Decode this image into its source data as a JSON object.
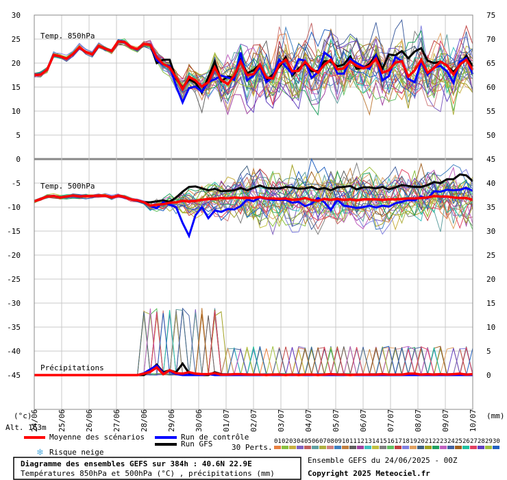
{
  "chart_data": {
    "type": "line",
    "dates": [
      "24/06",
      "25/06",
      "26/06",
      "27/06",
      "28/06",
      "29/06",
      "30/06",
      "01/07",
      "02/07",
      "03/07",
      "04/07",
      "05/07",
      "06/07",
      "07/07",
      "08/07",
      "09/07",
      "10/07"
    ],
    "left_ticks": [
      "30",
      "25",
      "20",
      "15",
      "10",
      "5",
      "0",
      "-5",
      "-10",
      "-15",
      "-20",
      "-25",
      "-30",
      "-35",
      "-40",
      "-45"
    ],
    "right_ticks": [
      "75",
      "70",
      "65",
      "60",
      "55",
      "50",
      "45",
      "40",
      "35",
      "30",
      "25",
      "20",
      "15",
      "10",
      "5",
      "0"
    ],
    "left_unit": "(°c)",
    "right_unit": "(mm)",
    "altitude_label": "Alt. 163m",
    "panels": {
      "t850": {
        "label": "Temp. 850hPa"
      },
      "t500": {
        "label": "Temp. 500hPa"
      },
      "precip": {
        "label": "Précipitations"
      }
    },
    "t850_mean": [
      17.5,
      17.6,
      18.6,
      21.7,
      21.4,
      20.9,
      21.9,
      23.3,
      22.3,
      21.8,
      23.6,
      23.0,
      22.5,
      24.5,
      24.4,
      23.3,
      22.9,
      24.0,
      23.8,
      21.2,
      19.8,
      19.1,
      17.0,
      14.6,
      17.1,
      16.4,
      15.1,
      16.0,
      19.1,
      16.5,
      15.6,
      17.4,
      20.3,
      17.5,
      17.7,
      19.7,
      17.0,
      16.8,
      19.7,
      20.7,
      18.3,
      18.4,
      20.3,
      18.8,
      18.0,
      19.7,
      20.7,
      18.7,
      18.9,
      20.4,
      19.4,
      18.9,
      19.4,
      20.9,
      18.0,
      18.5,
      20.1,
      20.4,
      17.2,
      18.5,
      20.7,
      18.0,
      19.0,
      20.3,
      19.5,
      17.6,
      19.7,
      20.7,
      18.6
    ],
    "t850_control": [
      17.5,
      17.6,
      18.6,
      21.7,
      21.4,
      20.9,
      21.9,
      23.3,
      22.3,
      21.8,
      23.6,
      23.0,
      22.5,
      24.5,
      24.4,
      23.3,
      22.9,
      24.0,
      23.8,
      20.6,
      19.7,
      19.4,
      15.2,
      11.8,
      14.8,
      15.1,
      14.0,
      16.1,
      16.6,
      17.4,
      17.0,
      16.5,
      22.2,
      16.4,
      17.4,
      19.2,
      16.0,
      17.1,
      20.7,
      19.3,
      17.7,
      20.8,
      20.5,
      16.9,
      18.1,
      22.2,
      21.2,
      17.8,
      17.8,
      20.9,
      20.0,
      19.3,
      18.8,
      21.6,
      16.4,
      17.3,
      21.3,
      20.4,
      16.7,
      16.0,
      20.3,
      17.6,
      19.1,
      19.4,
      18.3,
      15.9,
      20.3,
      21.0,
      17.7
    ],
    "t850_gfs": [
      17.5,
      17.6,
      18.6,
      21.7,
      21.4,
      20.9,
      21.9,
      23.3,
      22.3,
      21.8,
      23.6,
      23.0,
      22.5,
      24.5,
      24.4,
      23.3,
      22.9,
      24.0,
      23.8,
      20.0,
      20.7,
      20.7,
      16.7,
      14.9,
      16.6,
      15.9,
      13.8,
      17.1,
      20.3,
      16.2,
      17.2,
      16.9,
      20.6,
      17.9,
      18.5,
      19.7,
      16.5,
      17.6,
      19.2,
      21.2,
      17.4,
      18.9,
      19.9,
      18.3,
      18.4,
      20.4,
      20.3,
      19.3,
      19.7,
      21.4,
      18.8,
      19.0,
      19.8,
      21.7,
      18.8,
      21.8,
      21.6,
      22.5,
      21.0,
      22.4,
      23.1,
      20.5,
      20.0,
      20.3,
      19.4,
      18.2,
      19.5,
      21.5,
      19.3
    ],
    "t500_mean": [
      -8.8,
      -8.3,
      -7.8,
      -7.7,
      -8.0,
      -7.8,
      -7.6,
      -7.8,
      -7.7,
      -7.7,
      -7.6,
      -7.6,
      -8.0,
      -7.6,
      -7.9,
      -8.4,
      -8.6,
      -9.0,
      -9.7,
      -9.5,
      -9.4,
      -9.1,
      -9.0,
      -8.7,
      -8.8,
      -8.7,
      -8.5,
      -8.3,
      -8.3,
      -8.1,
      -8.2,
      -8.0,
      -8.1,
      -8.1,
      -8.1,
      -7.9,
      -8.2,
      -8.2,
      -8.3,
      -8.2,
      -8.5,
      -8.4,
      -8.1,
      -8.5,
      -8.7,
      -8.3,
      -8.5,
      -8.3,
      -8.5,
      -8.4,
      -8.6,
      -8.4,
      -8.4,
      -8.4,
      -8.5,
      -8.4,
      -8.4,
      -8.3,
      -8.2,
      -8.2,
      -8.1,
      -8.0,
      -7.7,
      -7.8,
      -7.8,
      -8.0,
      -8.1,
      -8.1,
      -8.5
    ],
    "t500_control": [
      -8.8,
      -8.3,
      -7.8,
      -7.7,
      -8.0,
      -7.8,
      -7.6,
      -7.8,
      -7.7,
      -7.7,
      -7.6,
      -7.6,
      -8.0,
      -7.6,
      -7.9,
      -8.4,
      -8.6,
      -9.0,
      -9.8,
      -10.2,
      -9.0,
      -9.5,
      -10.0,
      -13.3,
      -16.0,
      -11.7,
      -10.0,
      -12.3,
      -10.7,
      -11.0,
      -10.4,
      -10.5,
      -9.8,
      -8.4,
      -8.8,
      -8.0,
      -8.3,
      -8.5,
      -8.5,
      -8.5,
      -9.1,
      -8.9,
      -9.8,
      -9.3,
      -8.1,
      -9.0,
      -10.6,
      -8.5,
      -9.7,
      -9.9,
      -10.2,
      -10.0,
      -9.7,
      -10.1,
      -9.7,
      -9.9,
      -9.2,
      -8.9,
      -8.5,
      -8.6,
      -7.8,
      -8.2,
      -6.7,
      -6.8,
      -6.4,
      -6.5,
      -6.4,
      -6.0,
      -6.6
    ],
    "t500_gfs": [
      -8.8,
      -8.3,
      -7.8,
      -7.7,
      -8.0,
      -7.8,
      -7.6,
      -7.8,
      -7.7,
      -7.7,
      -7.6,
      -7.6,
      -8.0,
      -7.6,
      -7.9,
      -8.4,
      -8.6,
      -9.0,
      -9.0,
      -8.8,
      -8.6,
      -8.9,
      -8.0,
      -6.8,
      -5.8,
      -5.7,
      -6.1,
      -6.5,
      -6.2,
      -6.7,
      -6.6,
      -6.5,
      -6.0,
      -6.5,
      -6.0,
      -5.5,
      -6.0,
      -6.1,
      -6.1,
      -5.8,
      -5.9,
      -6.2,
      -6.1,
      -5.8,
      -6.3,
      -6.0,
      -6.5,
      -5.9,
      -5.8,
      -5.6,
      -6.3,
      -5.9,
      -5.9,
      -6.1,
      -5.8,
      -6.3,
      -5.9,
      -5.4,
      -5.6,
      -5.8,
      -5.8,
      -5.4,
      -4.8,
      -5.0,
      -4.2,
      -4.2,
      -3.2,
      -3.4,
      -4.6
    ],
    "precip_mean": [
      0,
      0,
      0,
      0,
      0,
      0,
      0,
      0,
      0,
      0,
      0,
      0,
      0,
      0,
      0,
      0,
      0,
      0.3,
      0.7,
      1.6,
      0.2,
      1.0,
      0.4,
      0.3,
      0.6,
      0.3,
      0.2,
      0.2,
      0.4,
      0.1,
      0.1,
      0.2,
      0.2,
      0.1,
      0.1,
      0.1,
      0,
      0.1,
      0.1,
      0,
      0.1,
      0,
      0.1,
      0.1,
      0,
      0.1,
      0.2,
      0.1,
      0.1,
      0,
      0.1,
      0.1,
      0.1,
      0.1,
      0.2,
      0.1,
      0.1,
      0.1,
      0.3,
      0.3,
      0.1,
      0.2,
      0.1,
      0.2,
      0.1,
      0.2,
      0.3,
      0.1,
      0.2
    ],
    "precip_control": [
      0,
      0,
      0,
      0,
      0,
      0,
      0,
      0,
      0,
      0,
      0,
      0,
      0,
      0,
      0,
      0,
      0,
      0.4,
      1.2,
      2.0,
      0.4,
      0.8,
      0.2,
      0,
      0,
      0,
      0,
      0.2,
      0,
      0,
      0,
      0,
      0,
      0,
      0,
      0,
      0,
      0,
      0,
      0,
      0,
      0,
      0,
      0,
      0,
      0,
      0,
      0,
      0,
      0,
      0,
      0,
      0,
      0,
      0,
      0,
      0,
      0,
      0,
      0,
      0,
      0,
      0,
      0,
      0,
      0,
      0,
      0,
      0
    ],
    "precip_gfs": [
      0,
      0,
      0,
      0,
      0,
      0,
      0,
      0,
      0,
      0,
      0,
      0,
      0,
      0,
      0,
      0,
      0,
      0,
      1.0,
      2.2,
      0.6,
      1.0,
      0.6,
      2.4,
      0.4,
      0.2,
      0,
      0,
      0.6,
      0.2,
      0,
      0,
      0,
      0,
      0,
      0,
      0,
      0,
      0,
      0,
      0,
      0,
      0,
      0,
      0,
      0,
      0,
      0,
      0,
      0,
      0,
      0,
      0,
      0,
      0,
      0,
      0,
      0,
      0,
      0,
      0,
      0,
      0,
      0,
      0,
      0,
      0,
      0,
      0
    ],
    "perturbation_labels": [
      "01",
      "02",
      "03",
      "04",
      "05",
      "06",
      "07",
      "08",
      "09",
      "10",
      "11",
      "12",
      "13",
      "14",
      "15",
      "16",
      "17",
      "18",
      "19",
      "20",
      "21",
      "22",
      "23",
      "24",
      "25",
      "26",
      "27",
      "28",
      "29",
      "30"
    ],
    "perturbation_colors": [
      "#e88040",
      "#88c040",
      "#c8b040",
      "#8060c0",
      "#c06060",
      "#60a0a0",
      "#b0b040",
      "#d08080",
      "#4080c0",
      "#c08040",
      "#606060",
      "#a040a0",
      "#40c0c0",
      "#c0c040",
      "#808080",
      "#60c060",
      "#c04040",
      "#8080e0",
      "#e0a060",
      "#406080",
      "#a0a020",
      "#20a060",
      "#c060c0",
      "#4060a0",
      "#a06020",
      "#20c0a0",
      "#e04060",
      "#6040c0",
      "#a0c040",
      "#2060c0"
    ],
    "series": [
      {
        "name": "Moyenne des scénarios",
        "color": "#ff0000"
      },
      {
        "name": "Run de contrôle",
        "color": "#0000ff"
      },
      {
        "name": "Run GFS",
        "color": "#000000"
      },
      {
        "name": "Risque neige",
        "color": "#5ab0e0"
      },
      {
        "name": "30 Perts.",
        "color": "#808080"
      }
    ],
    "title": "Diagramme des ensembles GEFS sur 384h : 40.6N 22.9E",
    "subtitle": "Températures 850hPa et 500hPa (°C) , précipitations (mm)",
    "run_info": "Ensemble GEFS du 24/06/2025 - 00Z",
    "copyright": "Copyright 2025 Meteociel.fr"
  }
}
